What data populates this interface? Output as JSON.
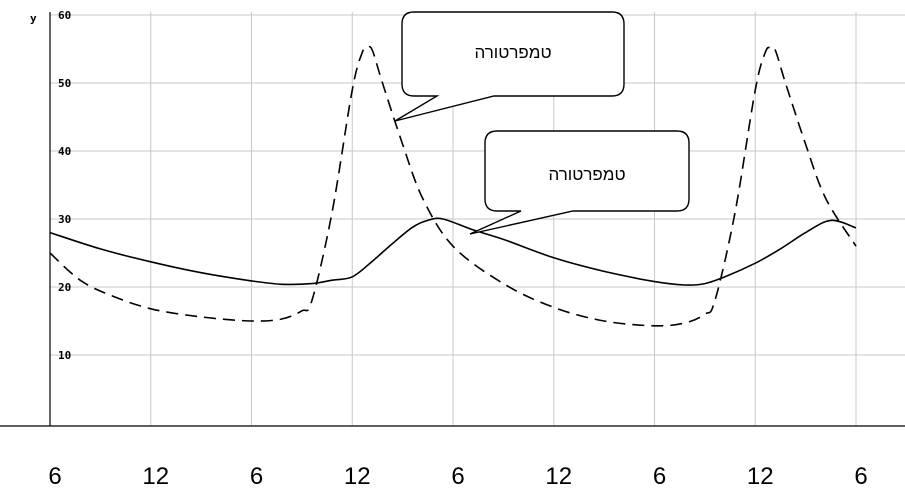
{
  "chart_data": {
    "type": "line",
    "ylabel": "y",
    "ylim": [
      0,
      60
    ],
    "yticks": [
      10,
      20,
      30,
      40,
      50,
      60
    ],
    "x_tick_labels": [
      "6",
      "12",
      "6",
      "12",
      "6",
      "12",
      "6",
      "12",
      "6"
    ],
    "xlim": [
      0,
      8
    ],
    "grid": true,
    "series": [
      {
        "style": "solid",
        "x": [
          0,
          0.5,
          1,
          1.5,
          2,
          2.3,
          2.6,
          2.8,
          3,
          3.2,
          3.4,
          3.6,
          3.75,
          3.9,
          4.2,
          4.5,
          5,
          5.5,
          6,
          6.3,
          6.5,
          6.7,
          7,
          7.25,
          7.5,
          7.75,
          8
        ],
        "y": [
          28,
          25.6,
          23.7,
          22.1,
          20.9,
          20.4,
          20.5,
          21,
          21.5,
          23.8,
          26.4,
          28.8,
          29.8,
          30,
          28.4,
          27,
          24.3,
          22.3,
          20.8,
          20.3,
          20.5,
          21.5,
          23.5,
          25.6,
          28,
          29.8,
          28.7
        ]
      },
      {
        "style": "dashed",
        "x": [
          0,
          0.3,
          0.6,
          1,
          1.5,
          2,
          2.3,
          2.5,
          2.6,
          2.8,
          3,
          3.1,
          3.15,
          3.2,
          3.3,
          3.5,
          3.7,
          4,
          4.5,
          5,
          5.5,
          6,
          6.3,
          6.5,
          6.6,
          6.8,
          7,
          7.1,
          7.15,
          7.2,
          7.3,
          7.5,
          7.7,
          8
        ],
        "y": [
          25,
          21,
          18.8,
          16.8,
          15.6,
          15,
          15.3,
          16.5,
          18,
          31,
          49,
          54.5,
          55.2,
          54.8,
          50,
          41,
          33,
          26,
          20.5,
          17,
          15,
          14.3,
          14.7,
          16,
          18,
          31,
          49,
          54.5,
          55.2,
          54.8,
          50,
          41,
          33,
          26
        ]
      }
    ],
    "annotations": [
      {
        "text": "טמפרטורה"
      },
      {
        "text": "טמפרטורה"
      }
    ]
  }
}
